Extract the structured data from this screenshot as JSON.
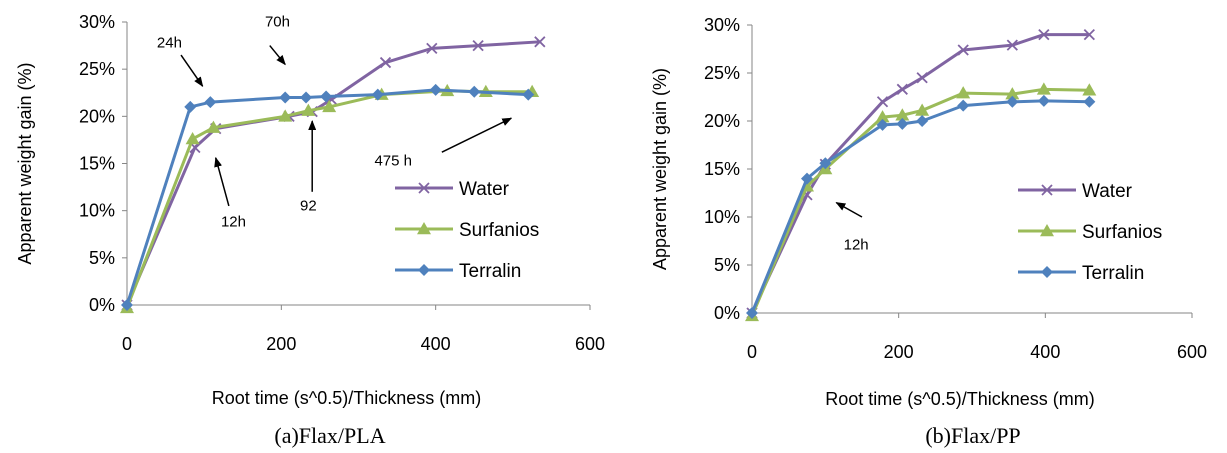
{
  "chart_data": [
    {
      "type": "line",
      "caption": "(a)Flax/PLA",
      "xlabel": "Root time (s^0.5)/Thickness (mm)",
      "ylabel": "Apparent weight gain (%)",
      "xlim": [
        0,
        600
      ],
      "ylim": [
        0,
        30
      ],
      "xticks": [
        "0",
        "200",
        "400",
        "600"
      ],
      "yticks": [
        "0%",
        "5%",
        "10%",
        "15%",
        "20%",
        "25%",
        "30%"
      ],
      "grid": false,
      "legend_position": "bottom-right",
      "series": [
        {
          "name": "Water",
          "color": "#8064A2",
          "marker": "x",
          "x": [
            0,
            88,
            115,
            210,
            240,
            265,
            335,
            395,
            455,
            535
          ],
          "y": [
            0,
            16.7,
            18.7,
            20.0,
            20.5,
            21.8,
            25.7,
            27.2,
            27.5,
            27.9
          ]
        },
        {
          "name": "Surfanios",
          "color": "#9BBB59",
          "marker": "triangle",
          "x": [
            0,
            85,
            112,
            205,
            235,
            262,
            330,
            415,
            465,
            525
          ],
          "y": [
            -0.3,
            17.6,
            18.8,
            20.0,
            20.6,
            21.0,
            22.3,
            22.7,
            22.6,
            22.6
          ]
        },
        {
          "name": "Terralin",
          "color": "#4F81BD",
          "marker": "diamond",
          "x": [
            0,
            82,
            108,
            205,
            232,
            258,
            325,
            400,
            450,
            520
          ],
          "y": [
            0,
            21.0,
            21.5,
            22.0,
            22.0,
            22.1,
            22.3,
            22.8,
            22.6,
            22.3
          ]
        }
      ],
      "annotations": [
        {
          "text": "24h",
          "x": 55,
          "y": 27.3,
          "arrow_from": [
            70,
            26.5
          ],
          "arrow_to": [
            98,
            23.2
          ]
        },
        {
          "text": "70h",
          "x": 195,
          "y": 29.5,
          "arrow_from": [
            185,
            27.5
          ],
          "arrow_to": [
            205,
            25.5
          ]
        },
        {
          "text": "12h",
          "x": 138,
          "y": 8.3,
          "arrow_from": [
            132,
            10.5
          ],
          "arrow_to": [
            115,
            15.6
          ]
        },
        {
          "text": "92",
          "x": 235,
          "y": 10.0,
          "arrow_from": [
            240,
            12.0
          ],
          "arrow_to": [
            240,
            19.5
          ]
        },
        {
          "text": "475 h",
          "x": 345,
          "y": 14.8,
          "arrow_from": [
            408,
            16.2
          ],
          "arrow_to": [
            498,
            19.8
          ]
        }
      ]
    },
    {
      "type": "line",
      "caption": "(b)Flax/PP",
      "xlabel": "Root time (s^0.5)/Thickness (mm)",
      "ylabel": "Apparent weight gain (%)",
      "xlim": [
        0,
        600
      ],
      "ylim": [
        0,
        30
      ],
      "xticks": [
        "0",
        "200",
        "400",
        "600"
      ],
      "yticks": [
        "0%",
        "5%",
        "10%",
        "15%",
        "20%",
        "25%",
        "30%"
      ],
      "grid": false,
      "legend_position": "bottom-right",
      "series": [
        {
          "name": "Water",
          "color": "#8064A2",
          "marker": "x",
          "x": [
            0,
            75,
            100,
            178,
            205,
            232,
            288,
            355,
            398,
            460
          ],
          "y": [
            0,
            12.3,
            15.5,
            22.0,
            23.3,
            24.5,
            27.4,
            27.9,
            29.0,
            29.0
          ]
        },
        {
          "name": "Surfanios",
          "color": "#9BBB59",
          "marker": "triangle",
          "x": [
            0,
            75,
            100,
            178,
            205,
            232,
            288,
            355,
            398,
            460
          ],
          "y": [
            -0.3,
            13.2,
            15.0,
            20.4,
            20.6,
            21.1,
            22.9,
            22.8,
            23.3,
            23.2
          ]
        },
        {
          "name": "Terralin",
          "color": "#4F81BD",
          "marker": "diamond",
          "x": [
            0,
            75,
            100,
            178,
            205,
            232,
            288,
            355,
            398,
            460
          ],
          "y": [
            0,
            14.0,
            15.6,
            19.6,
            19.7,
            20.0,
            21.6,
            22.0,
            22.1,
            22.0
          ]
        }
      ],
      "annotations": [
        {
          "text": "12h",
          "x": 142,
          "y": 6.6,
          "arrow_from": [
            150,
            10.0
          ],
          "arrow_to": [
            115,
            11.5
          ]
        }
      ]
    }
  ]
}
